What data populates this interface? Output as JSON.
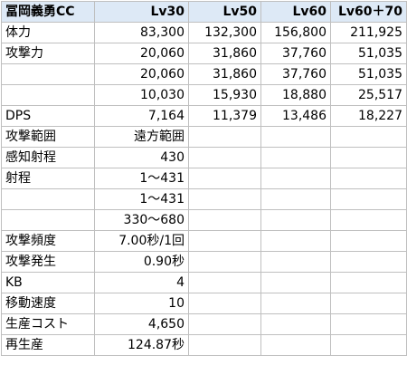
{
  "header": {
    "name": "冨岡義勇CC",
    "levels": [
      "Lv30",
      "Lv50",
      "Lv60",
      "Lv60＋70"
    ]
  },
  "rows": [
    {
      "label": "体力",
      "values": [
        "83,300",
        "132,300",
        "156,800",
        "211,925"
      ]
    },
    {
      "label": "攻撃力",
      "values": [
        "20,060",
        "31,860",
        "37,760",
        "51,035"
      ]
    },
    {
      "label": "",
      "values": [
        "20,060",
        "31,860",
        "37,760",
        "51,035"
      ]
    },
    {
      "label": "",
      "values": [
        "10,030",
        "15,930",
        "18,880",
        "25,517"
      ]
    },
    {
      "label": "DPS",
      "values": [
        "7,164",
        "11,379",
        "13,486",
        "18,227"
      ]
    },
    {
      "label": "攻撃範囲",
      "values": [
        "遠方範囲",
        "",
        "",
        ""
      ]
    },
    {
      "label": "感知射程",
      "values": [
        "430",
        "",
        "",
        ""
      ]
    },
    {
      "label": "射程",
      "values": [
        "1～431",
        "",
        "",
        ""
      ]
    },
    {
      "label": "",
      "values": [
        "1～431",
        "",
        "",
        ""
      ]
    },
    {
      "label": "",
      "values": [
        "330～680",
        "",
        "",
        ""
      ]
    },
    {
      "label": "攻撃頻度",
      "values": [
        "7.00秒/1回",
        "",
        "",
        ""
      ]
    },
    {
      "label": "攻撃発生",
      "values": [
        "0.90秒",
        "",
        "",
        ""
      ]
    },
    {
      "label": "KB",
      "values": [
        "4",
        "",
        "",
        ""
      ]
    },
    {
      "label": "移動速度",
      "values": [
        "10",
        "",
        "",
        ""
      ]
    },
    {
      "label": "生産コスト",
      "values": [
        "4,650",
        "",
        "",
        ""
      ]
    },
    {
      "label": "再生産",
      "values": [
        "124.87秒",
        "",
        "",
        ""
      ]
    }
  ]
}
